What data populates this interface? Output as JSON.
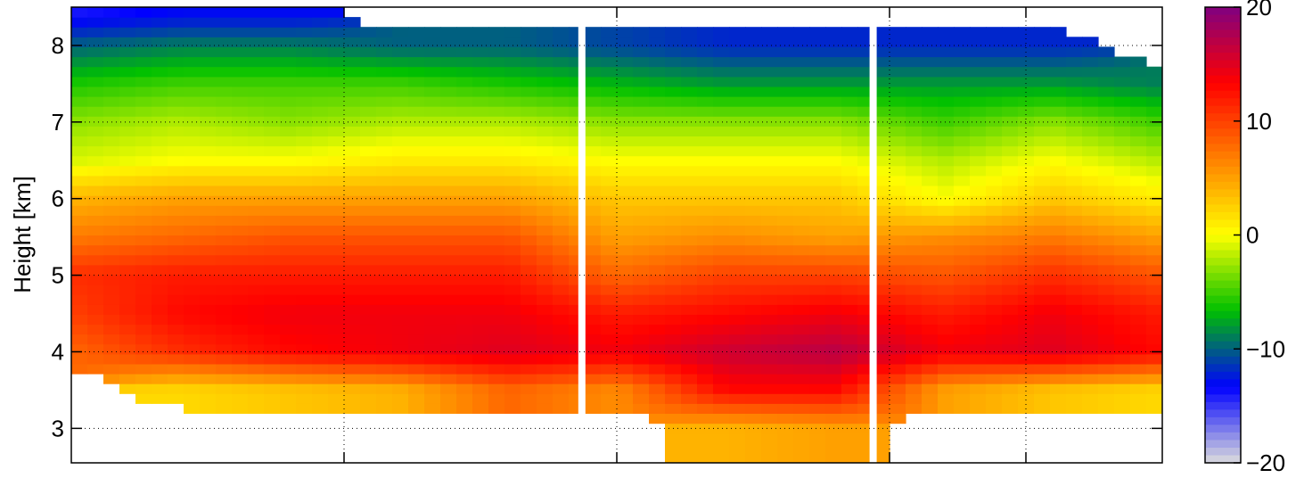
{
  "chart_data": {
    "type": "heatmap",
    "title": "",
    "xlabel": "",
    "ylabel": "Height [km]",
    "ylim": [
      2.55,
      8.5
    ],
    "yticks": [
      3,
      4,
      5,
      6,
      7,
      8
    ],
    "x_tick_fractions": [
      0.25,
      0.5,
      0.75,
      0.875
    ],
    "grid": true,
    "gaps_at_x_fraction": [
      0.468,
      0.735
    ],
    "colorbar": {
      "range": [
        -20,
        20
      ],
      "ticks": [
        20,
        10,
        0,
        -10,
        -20
      ],
      "colormap": [
        "#dcdcdc",
        "#0000ff",
        "#00c000",
        "#ffff00",
        "#ff8000",
        "#ff0000",
        "#800080"
      ]
    },
    "profiles": {
      "x_fraction": [
        0.0,
        0.1,
        0.2,
        0.3,
        0.4,
        0.5,
        0.6,
        0.7,
        0.8,
        0.9,
        1.0
      ],
      "heights_km": [
        3.0,
        3.5,
        4.0,
        4.5,
        5.0,
        5.5,
        6.0,
        6.5,
        7.0,
        7.5,
        8.0,
        8.4
      ],
      "values": [
        [
          null,
          null,
          8,
          10,
          11,
          7,
          4,
          -1,
          -3,
          -6,
          -10,
          -14
        ],
        [
          null,
          2,
          11,
          13,
          12,
          8,
          5,
          0,
          -2,
          -5,
          -9,
          -13
        ],
        [
          null,
          3,
          13,
          14,
          12,
          9,
          5,
          0,
          -3,
          -5,
          -9,
          -13
        ],
        [
          null,
          4,
          14,
          14,
          12,
          9,
          5,
          1,
          -2,
          -5,
          -10,
          null
        ],
        [
          null,
          8,
          15,
          14,
          12,
          9,
          5,
          1,
          -2,
          -6,
          -10,
          null
        ],
        [
          null,
          6,
          14,
          12,
          8,
          5,
          3,
          0,
          -3,
          -7,
          -11,
          null
        ],
        [
          4,
          13,
          16,
          13,
          10,
          6,
          3,
          0,
          -3,
          -8,
          -12,
          null
        ],
        [
          5,
          13,
          17,
          14,
          10,
          5,
          3,
          0,
          -3,
          -8,
          -12,
          null
        ],
        [
          null,
          5,
          14,
          12,
          9,
          6,
          0,
          -2,
          -5,
          -8,
          -12,
          null
        ],
        [
          null,
          3,
          15,
          14,
          11,
          7,
          3,
          0,
          -3,
          -8,
          -12,
          null
        ],
        [
          null,
          2,
          13,
          12,
          9,
          5,
          1,
          -2,
          -5,
          -9,
          null,
          null
        ]
      ]
    }
  }
}
